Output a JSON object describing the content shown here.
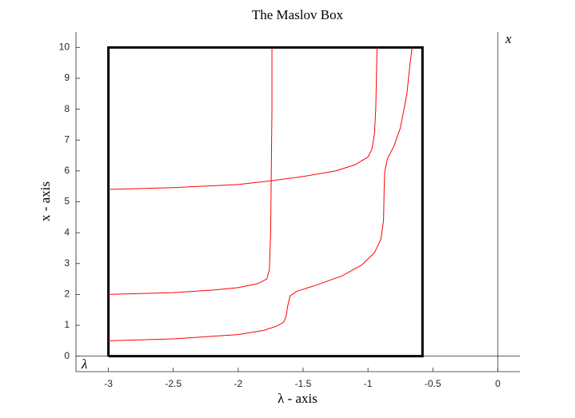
{
  "chart_data": {
    "type": "line",
    "title": "The Maslov Box",
    "xlabel": "λ - axis",
    "ylabel": "x - axis",
    "annotations": [
      "x",
      "λ"
    ],
    "xlim": [
      -3.25,
      0.17
    ],
    "ylim": [
      -0.5,
      10.5
    ],
    "xticks": [
      -3,
      -2.5,
      -2,
      -1.5,
      -1,
      -0.5,
      0
    ],
    "yticks": [
      0,
      1,
      2,
      3,
      4,
      5,
      6,
      7,
      8,
      9,
      10
    ],
    "series": [
      {
        "color": "#000000",
        "linewidth": 3,
        "x": [
          -3,
          -0.58,
          -0.58,
          -3,
          -3
        ],
        "values": [
          0,
          0,
          10,
          10,
          0
        ]
      },
      {
        "color": "#ff0000",
        "linewidth": 1,
        "x": [
          -3,
          -2.5,
          -2.2,
          -2,
          -1.85,
          -1.78,
          -1.76,
          -1.75,
          -1.745,
          -1.74,
          -1.74
        ],
        "values": [
          2.0,
          2.06,
          2.14,
          2.22,
          2.35,
          2.5,
          2.8,
          4,
          6,
          8,
          10
        ]
      },
      {
        "color": "#ff0000",
        "linewidth": 1,
        "x": [
          -3,
          -2.5,
          -2,
          -1.75,
          -1.5,
          -1.25,
          -1.1,
          -1.0,
          -0.97,
          -0.95,
          -0.94,
          -0.935,
          -0.93
        ],
        "values": [
          5.4,
          5.46,
          5.56,
          5.68,
          5.82,
          6.0,
          6.2,
          6.45,
          6.7,
          7.2,
          8,
          9,
          10
        ]
      },
      {
        "color": "#ff0000",
        "linewidth": 1,
        "x": [
          -3,
          -2.5,
          -2,
          -1.8,
          -1.7,
          -1.65,
          -1.63,
          -1.62,
          -1.6,
          -1.55,
          -1.4,
          -1.2,
          -1.05,
          -0.95,
          -0.9,
          -0.88,
          -0.875,
          -0.87,
          -0.85,
          -0.8,
          -0.75,
          -0.7,
          -0.675,
          -0.66
        ],
        "values": [
          0.5,
          0.56,
          0.7,
          0.84,
          0.98,
          1.1,
          1.3,
          1.6,
          1.95,
          2.1,
          2.3,
          2.6,
          2.95,
          3.35,
          3.8,
          4.4,
          5.5,
          6.0,
          6.4,
          6.8,
          7.4,
          8.5,
          9.5,
          10
        ]
      }
    ]
  }
}
